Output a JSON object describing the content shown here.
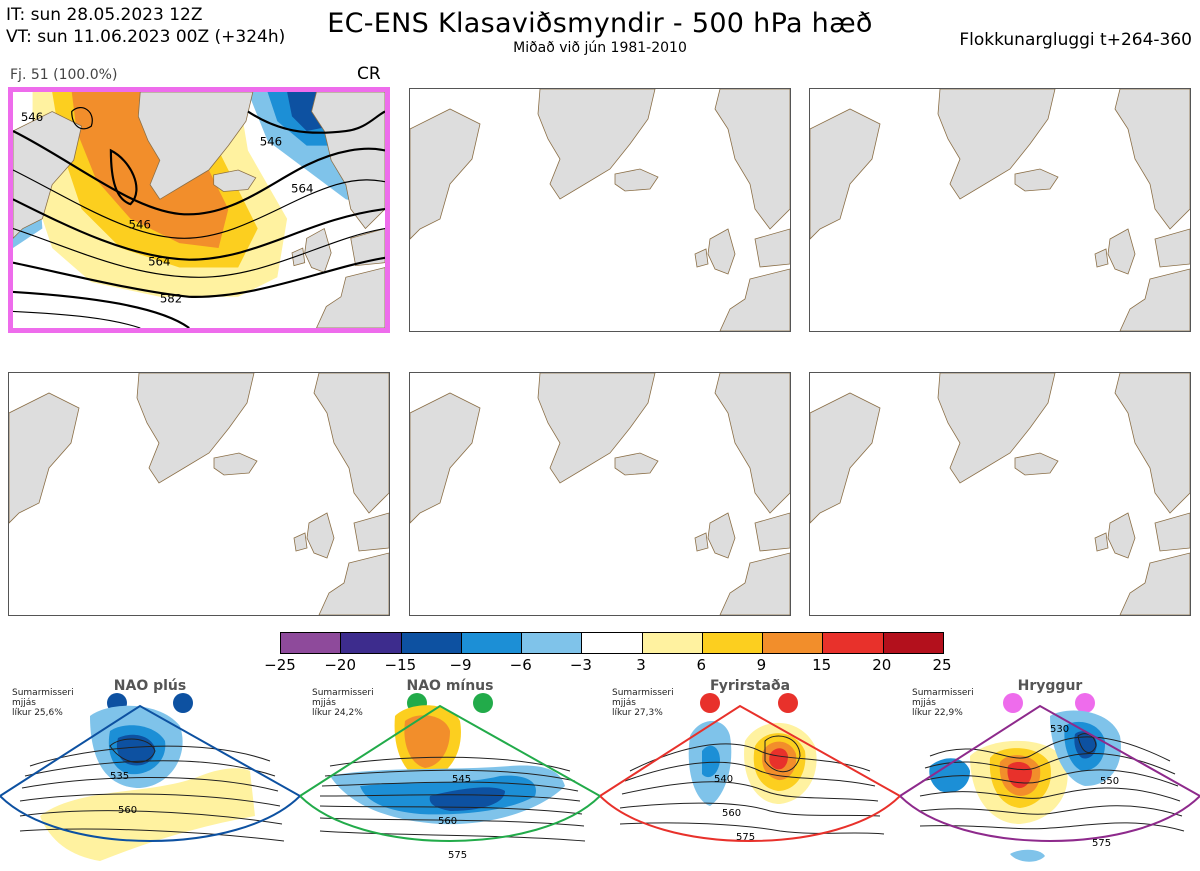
{
  "header": {
    "it_line": "IT: sun 28.05.2023 12Z",
    "vt_line": "VT: sun 11.06.2023 00Z  (+324h)",
    "title": "EC-ENS Klasaviðsmyndir - 500 hPa hæð",
    "subtitle": "Miðað við jún 1981-2010",
    "window": "Flokkunargluggi t+264-360"
  },
  "cluster_panel": {
    "member_label": "Fj. 51 (100.0%)",
    "regime_code": "CR",
    "contour_labels": [
      "546",
      "546",
      "546",
      "564",
      "564",
      "582"
    ]
  },
  "colorbar": {
    "ticks": [
      "−25",
      "−20",
      "−15",
      "−9",
      "−6",
      "−3",
      "3",
      "6",
      "9",
      "15",
      "20",
      "25"
    ],
    "colors": [
      "#8e4a9b",
      "#3d2c8d",
      "#0d51a1",
      "#1c8fd6",
      "#7fc3ea",
      "#ffffff",
      "#fff2a0",
      "#fccf1f",
      "#f28e2b",
      "#e8312b",
      "#b3101c"
    ]
  },
  "regimes": [
    {
      "name": "NAO plús",
      "season": "Sumarmisseri",
      "line2": "mjjás",
      "likur": "líkur 25,6%",
      "color": "#0d51a1",
      "labels": [
        "535",
        "560"
      ]
    },
    {
      "name": "NAO mínus",
      "season": "Sumarmisseri",
      "line2": "mjjás",
      "likur": "líkur 24,2%",
      "color": "#22ab4a",
      "labels": [
        "545",
        "560",
        "575"
      ]
    },
    {
      "name": "Fyrirstaða",
      "season": "Sumarmisseri",
      "line2": "mjjás",
      "likur": "líkur 27,3%",
      "color": "#e8312b",
      "labels": [
        "540",
        "560",
        "575"
      ]
    },
    {
      "name": "Hryggur",
      "season": "Sumarmisseri",
      "line2": "mjjás",
      "likur": "líkur 22,9%",
      "color": "#8e2a8c",
      "labels": [
        "530",
        "550",
        "575"
      ]
    }
  ]
}
